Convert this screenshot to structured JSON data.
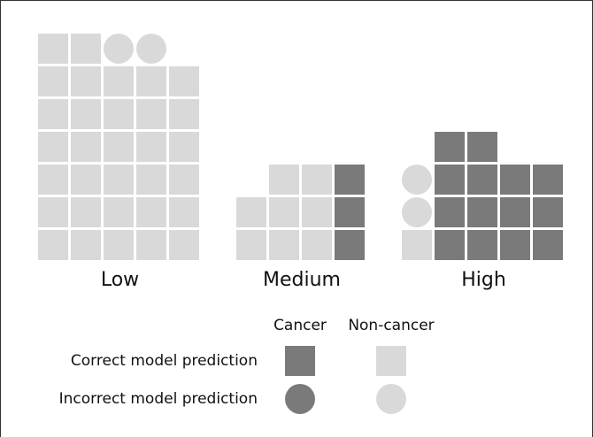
{
  "chart_data": {
    "type": "waffle",
    "categories": [
      "Low",
      "Medium",
      "High"
    ],
    "groups": [
      {
        "label": "Cancer",
        "color": "#7a7a7a",
        "correct": [
          0,
          3,
          14
        ],
        "incorrect": [
          0,
          0,
          0
        ]
      },
      {
        "label": "Non-cancer",
        "color": "#d9d9d9",
        "correct": [
          32,
          8,
          1
        ],
        "incorrect": [
          2,
          0,
          2
        ]
      }
    ],
    "legend_rows": [
      {
        "label": "Correct model prediction",
        "shape": "square"
      },
      {
        "label": "Incorrect model prediction",
        "shape": "circle"
      }
    ]
  }
}
